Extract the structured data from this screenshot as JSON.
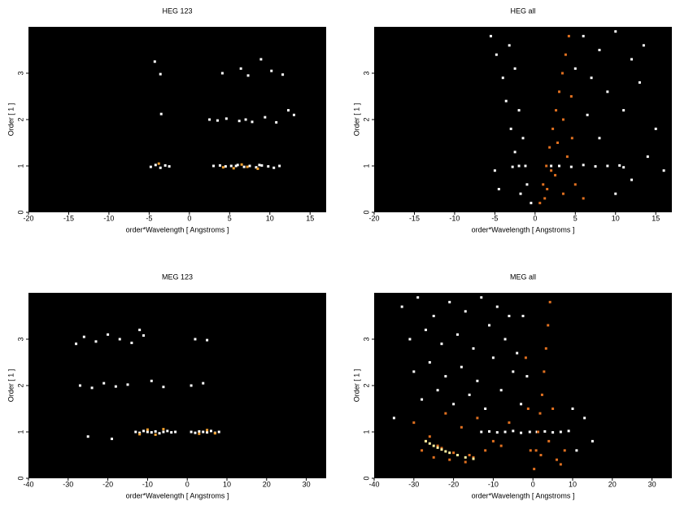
{
  "chart_data": [
    {
      "type": "scatter",
      "title": "HEG 123",
      "xlabel": "order*Wavelength [ Angstroms ]",
      "ylabel": "Order [ 1 ]",
      "xlim": [
        -20,
        17
      ],
      "ylim": [
        0,
        4
      ],
      "xticks": [
        -20,
        -15,
        -10,
        -5,
        0,
        5,
        10,
        15
      ],
      "yticks": [
        0,
        1,
        2,
        3
      ],
      "series": [
        {
          "color": "#ffffff",
          "x": [
            -4.8,
            -4.2,
            -3.6,
            -3,
            -2.5,
            3,
            3.8,
            4.5,
            5.2,
            6,
            6.8,
            7.5,
            8.3,
            9,
            9.8,
            10.5,
            11.2,
            -3.5,
            2.5,
            3.5,
            4.6,
            6.2,
            7.8,
            9.4,
            10.8,
            12.3,
            13,
            -4.3,
            -3.6,
            4.1,
            6.4,
            7.3,
            8.9,
            10.2,
            11.6,
            7,
            5.8,
            8.7
          ],
          "y": [
            0.98,
            1.02,
            0.96,
            1.01,
            0.99,
            1.0,
            1.01,
            0.99,
            1.0,
            1.02,
            0.98,
            1.0,
            0.97,
            1.01,
            0.99,
            0.96,
            1.0,
            2.12,
            2.0,
            1.98,
            2.02,
            1.97,
            1.95,
            2.05,
            1.94,
            2.2,
            2.1,
            3.25,
            2.98,
            3.0,
            3.1,
            2.95,
            3.3,
            3.05,
            2.97,
            2.0,
            1.0,
            1.02
          ]
        },
        {
          "color": "#f0a030",
          "x": [
            5.5,
            6.5,
            7.2,
            8.5,
            -3.8,
            4.2
          ],
          "y": [
            0.95,
            1.03,
            0.98,
            0.94,
            1.05,
            0.97
          ]
        }
      ]
    },
    {
      "type": "scatter",
      "title": "HEG all",
      "xlabel": "order*Wavelength [ Angstroms ]",
      "ylabel": "Order [ 1 ]",
      "xlim": [
        -20,
        17
      ],
      "ylim": [
        0,
        4
      ],
      "xticks": [
        -20,
        -15,
        -10,
        -5,
        0,
        5,
        10,
        15
      ],
      "yticks": [
        0,
        1,
        2,
        3
      ],
      "series": [
        {
          "color": "#ffffff",
          "x": [
            -5.5,
            -4.8,
            -3.2,
            -4,
            -2.5,
            -3.6,
            -2,
            -3,
            -1.5,
            -2.5,
            -1.2,
            -2,
            -2.8,
            -1,
            -1.8,
            -0.5,
            -4.5,
            -5,
            6,
            8,
            10,
            12,
            7,
            9,
            11,
            13,
            15,
            14,
            12,
            10,
            8,
            6.5,
            5,
            16,
            7.5,
            9,
            10.5,
            4.5,
            6,
            11,
            13.5,
            3,
            2
          ],
          "y": [
            3.8,
            3.4,
            3.6,
            2.9,
            3.1,
            2.4,
            2.2,
            1.8,
            1.6,
            1.3,
            1.0,
            1.0,
            0.98,
            0.6,
            0.4,
            0.2,
            0.5,
            0.9,
            3.8,
            3.5,
            3.9,
            3.3,
            2.9,
            2.6,
            2.2,
            2.8,
            1.8,
            1.2,
            0.7,
            0.4,
            1.6,
            2.1,
            3.1,
            0.9,
            0.99,
            1.0,
            1.01,
            0.98,
            1.02,
            0.97,
            3.6,
            1.0,
            1.0
          ]
        },
        {
          "color": "#e07020",
          "x": [
            0.6,
            1,
            1.4,
            1.8,
            2.2,
            2.6,
            3,
            3.4,
            3.8,
            4.2,
            1.5,
            2.5,
            3.5,
            4,
            5,
            2.8,
            3.5,
            4.5,
            1.2,
            6,
            4.6,
            2
          ],
          "y": [
            0.2,
            0.6,
            1.0,
            1.4,
            1.8,
            2.2,
            2.6,
            3.0,
            3.4,
            3.8,
            0.5,
            0.8,
            0.4,
            1.2,
            0.6,
            1.5,
            2.0,
            2.5,
            0.3,
            0.3,
            1.6,
            0.9
          ]
        }
      ]
    },
    {
      "type": "scatter",
      "title": "MEG 123",
      "xlabel": "order*Wavelength [ Angstroms ]",
      "ylabel": "Order [ 1 ]",
      "xlim": [
        -40,
        35
      ],
      "ylim": [
        0,
        4
      ],
      "xticks": [
        -40,
        -30,
        -20,
        -10,
        0,
        10,
        20,
        30
      ],
      "yticks": [
        0,
        1,
        2,
        3
      ],
      "series": [
        {
          "color": "#ffffff",
          "x": [
            -13,
            -12,
            -11,
            -10,
            -9,
            -8,
            -7,
            -6,
            -5,
            -4,
            -3,
            1,
            2,
            3,
            4,
            5,
            6,
            7,
            8,
            -27,
            -24,
            -21,
            -18,
            -15,
            -9,
            -6,
            1,
            4,
            -28,
            -26,
            -23,
            -20,
            -17,
            -14,
            -11,
            -12,
            2,
            5,
            -25,
            -19
          ],
          "y": [
            1.0,
            0.98,
            1.02,
            1.0,
            0.99,
            1.01,
            0.97,
            1.0,
            1.02,
            0.99,
            1.0,
            1.0,
            0.98,
            1.01,
            1.0,
            0.99,
            1.02,
            0.98,
            1.0,
            2.0,
            1.95,
            2.05,
            1.98,
            2.02,
            2.1,
            1.97,
            2.0,
            2.05,
            2.9,
            3.05,
            2.95,
            3.1,
            3.0,
            2.92,
            3.08,
            3.2,
            3.0,
            2.98,
            0.9,
            0.85
          ]
        },
        {
          "color": "#f0a030",
          "x": [
            -10,
            -8,
            -6,
            -12,
            3,
            5,
            7
          ],
          "y": [
            1.05,
            0.94,
            1.06,
            0.95,
            0.96,
            1.04,
            0.97
          ]
        }
      ]
    },
    {
      "type": "scatter",
      "title": "MEG all",
      "xlabel": "order*Wavelength [ Angstroms ]",
      "ylabel": "Order [ 1 ]",
      "xlim": [
        -40,
        35
      ],
      "ylim": [
        0,
        4
      ],
      "xticks": [
        -40,
        -30,
        -20,
        -10,
        0,
        10,
        20,
        30
      ],
      "yticks": [
        0,
        1,
        2,
        3
      ],
      "series": [
        {
          "color": "#ffffff",
          "x": [
            -33,
            -29,
            -25,
            -21,
            -17,
            -13,
            -9,
            -6,
            -31,
            -27,
            -23,
            -19,
            -15,
            -11,
            -7,
            -4,
            -30,
            -26,
            -22,
            -18,
            -14,
            -10,
            -5,
            -28,
            -24,
            -20,
            -16,
            -12,
            -8,
            -3,
            -13,
            -11,
            -9,
            -7,
            -5,
            -3,
            1,
            3,
            5,
            7,
            9,
            -2.5,
            -1.5,
            -0.8,
            10,
            13,
            15,
            11,
            -35
          ],
          "y": [
            3.7,
            3.9,
            3.5,
            3.8,
            3.6,
            3.9,
            3.7,
            3.5,
            3.0,
            3.2,
            2.9,
            3.1,
            2.8,
            3.3,
            3.0,
            2.7,
            2.3,
            2.5,
            2.2,
            2.4,
            2.1,
            2.6,
            2.3,
            1.7,
            1.9,
            1.6,
            1.8,
            1.5,
            1.9,
            1.6,
            1.0,
            1.01,
            0.99,
            1.0,
            1.02,
            0.98,
            1.0,
            1.01,
            0.99,
            1.0,
            1.02,
            3.5,
            2.2,
            1.0,
            1.5,
            1.3,
            0.8,
            0.6,
            1.3
          ]
        },
        {
          "color": "#e07020",
          "x": [
            -30,
            -26,
            -22,
            -18,
            -14,
            -10,
            -6,
            -28,
            -24,
            -20,
            -16,
            -12,
            -8,
            -25,
            -21,
            -17,
            -27,
            -23,
            -19,
            -15,
            0.3,
            0.8,
            1.3,
            1.8,
            2.3,
            2.8,
            3.3,
            3.8,
            4.3,
            2,
            4,
            6,
            8,
            5,
            7,
            -0.6,
            -1.2,
            -1.8
          ],
          "y": [
            1.2,
            0.9,
            1.4,
            1.1,
            1.3,
            0.8,
            1.2,
            0.6,
            0.7,
            0.55,
            0.5,
            0.6,
            0.7,
            0.45,
            0.4,
            0.35,
            0.8,
            0.65,
            0.5,
            0.45,
            0.2,
            0.6,
            1.0,
            1.4,
            1.8,
            2.3,
            2.8,
            3.3,
            3.8,
            0.5,
            0.8,
            0.4,
            0.6,
            1.5,
            0.3,
            0.6,
            1.5,
            2.6
          ]
        },
        {
          "color": "#fff0a0",
          "x": [
            -27,
            -25,
            -23,
            -21,
            -19,
            -17,
            -15,
            -26,
            -24,
            -22
          ],
          "y": [
            0.8,
            0.7,
            0.62,
            0.55,
            0.5,
            0.45,
            0.42,
            0.75,
            0.66,
            0.58
          ]
        }
      ]
    }
  ]
}
